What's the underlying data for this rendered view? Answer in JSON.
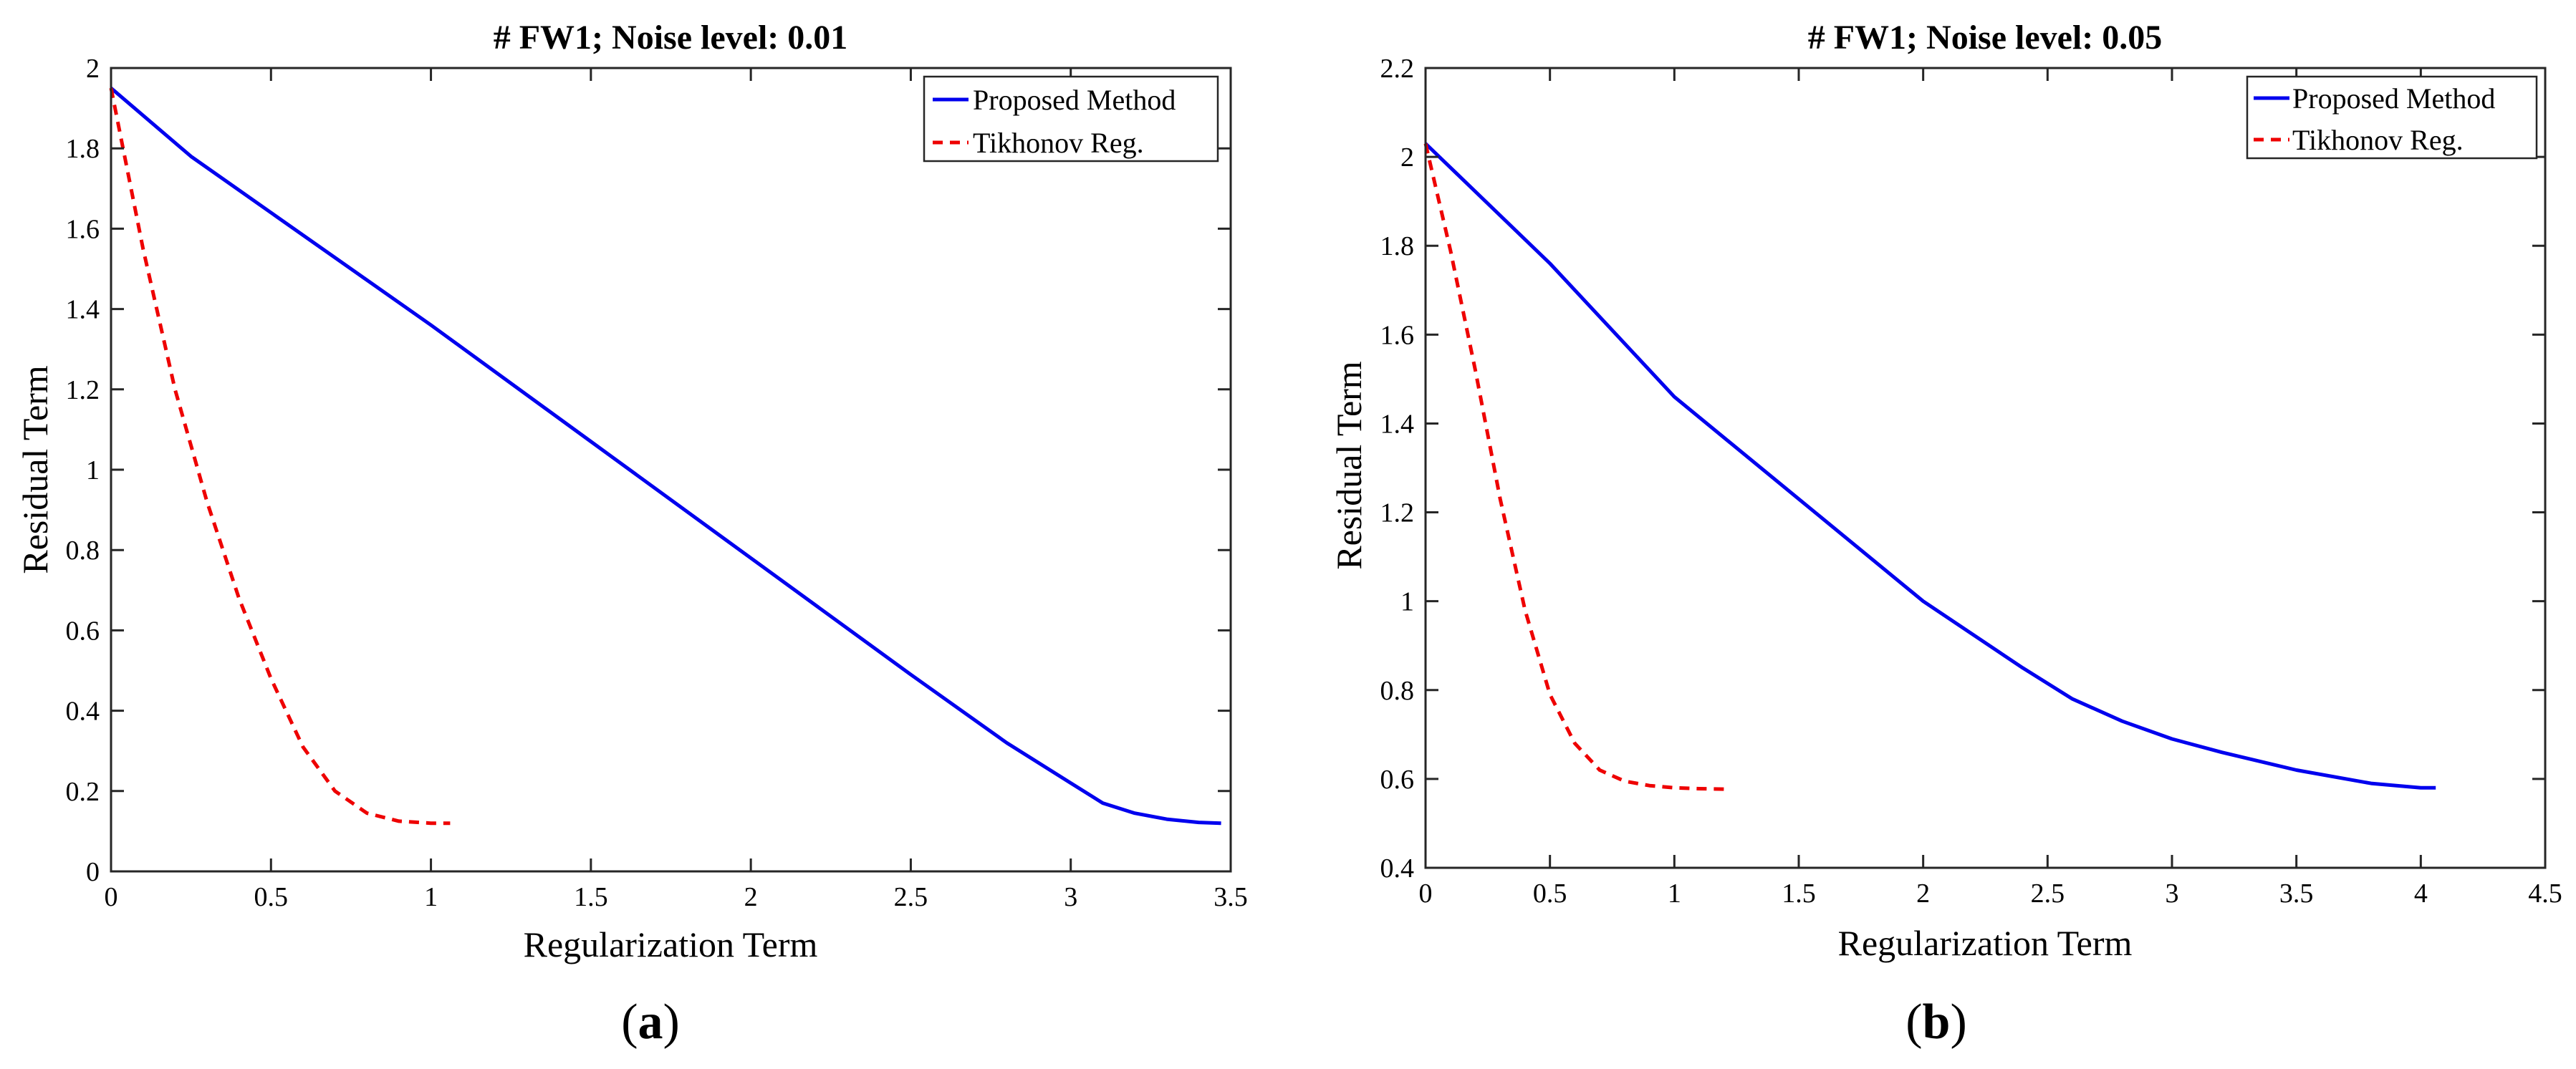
{
  "chart_data": [
    {
      "type": "line",
      "panel_label": {
        "open": "(",
        "letter": "a",
        "close": ")"
      },
      "title": "# FW1; Noise level: 0.01",
      "xlabel": "Regularization Term",
      "ylabel": "Residual Term",
      "xlim": [
        0,
        3.5
      ],
      "ylim": [
        0,
        2
      ],
      "xticks": [
        0,
        0.5,
        1,
        1.5,
        2,
        2.5,
        3,
        3.5
      ],
      "xtick_labels": [
        "0",
        "0.5",
        "1",
        "1.5",
        "2",
        "2.5",
        "3",
        "3.5"
      ],
      "yticks": [
        0,
        0.2,
        0.4,
        0.6,
        0.8,
        1,
        1.2,
        1.4,
        1.6,
        1.8,
        2
      ],
      "ytick_labels": [
        "0",
        "0.2",
        "0.4",
        "0.6",
        "0.8",
        "1",
        "1.2",
        "1.4",
        "1.6",
        "1.8",
        "2"
      ],
      "legend_position": "top-right",
      "grid": false,
      "series": [
        {
          "name": "Proposed Method",
          "color": "#0000ee",
          "dash": "solid",
          "x": [
            0,
            0.25,
            0.5,
            1.0,
            1.5,
            2.0,
            2.5,
            2.8,
            3.0,
            3.1,
            3.2,
            3.3,
            3.4,
            3.47
          ],
          "y": [
            1.95,
            1.78,
            1.64,
            1.36,
            1.07,
            0.78,
            0.49,
            0.32,
            0.22,
            0.17,
            0.145,
            0.13,
            0.122,
            0.12
          ]
        },
        {
          "name": "Tikhonov Reg.",
          "color": "#ee0000",
          "dash": "dashed",
          "x": [
            0,
            0.1,
            0.2,
            0.3,
            0.4,
            0.5,
            0.6,
            0.7,
            0.8,
            0.9,
            1.0,
            1.06
          ],
          "y": [
            1.95,
            1.55,
            1.2,
            0.92,
            0.68,
            0.48,
            0.31,
            0.2,
            0.145,
            0.125,
            0.12,
            0.12
          ]
        }
      ]
    },
    {
      "type": "line",
      "panel_label": {
        "open": "(",
        "letter": "b",
        "close": ")"
      },
      "title": "# FW1; Noise level: 0.05",
      "xlabel": "Regularization Term",
      "ylabel": "Residual Term",
      "xlim": [
        0,
        4.5
      ],
      "ylim": [
        0.4,
        2.2
      ],
      "xticks": [
        0,
        0.5,
        1,
        1.5,
        2,
        2.5,
        3,
        3.5,
        4,
        4.5
      ],
      "xtick_labels": [
        "0",
        "0.5",
        "1",
        "1.5",
        "2",
        "2.5",
        "3",
        "3.5",
        "4",
        "4.5"
      ],
      "yticks": [
        0.4,
        0.6,
        0.8,
        1,
        1.2,
        1.4,
        1.6,
        1.8,
        2,
        2.2
      ],
      "ytick_labels": [
        "0.4",
        "0.6",
        "0.8",
        "1",
        "1.2",
        "1.4",
        "1.6",
        "1.8",
        "2",
        "2.2"
      ],
      "legend_position": "top-right",
      "grid": false,
      "series": [
        {
          "name": "Proposed Method",
          "color": "#0000ee",
          "dash": "solid",
          "x": [
            0,
            0.5,
            1.0,
            1.5,
            2.0,
            2.4,
            2.6,
            2.8,
            3.0,
            3.2,
            3.5,
            3.8,
            4.0,
            4.06
          ],
          "y": [
            2.03,
            1.76,
            1.46,
            1.23,
            1.0,
            0.85,
            0.78,
            0.73,
            0.69,
            0.66,
            0.62,
            0.59,
            0.58,
            0.58
          ]
        },
        {
          "name": "Tikhonov Reg.",
          "color": "#ee0000",
          "dash": "dashed",
          "x": [
            0,
            0.1,
            0.2,
            0.3,
            0.4,
            0.5,
            0.6,
            0.7,
            0.8,
            0.9,
            1.0,
            1.1,
            1.22
          ],
          "y": [
            2.03,
            1.79,
            1.52,
            1.23,
            0.98,
            0.79,
            0.68,
            0.62,
            0.595,
            0.585,
            0.58,
            0.578,
            0.577
          ]
        }
      ]
    }
  ]
}
